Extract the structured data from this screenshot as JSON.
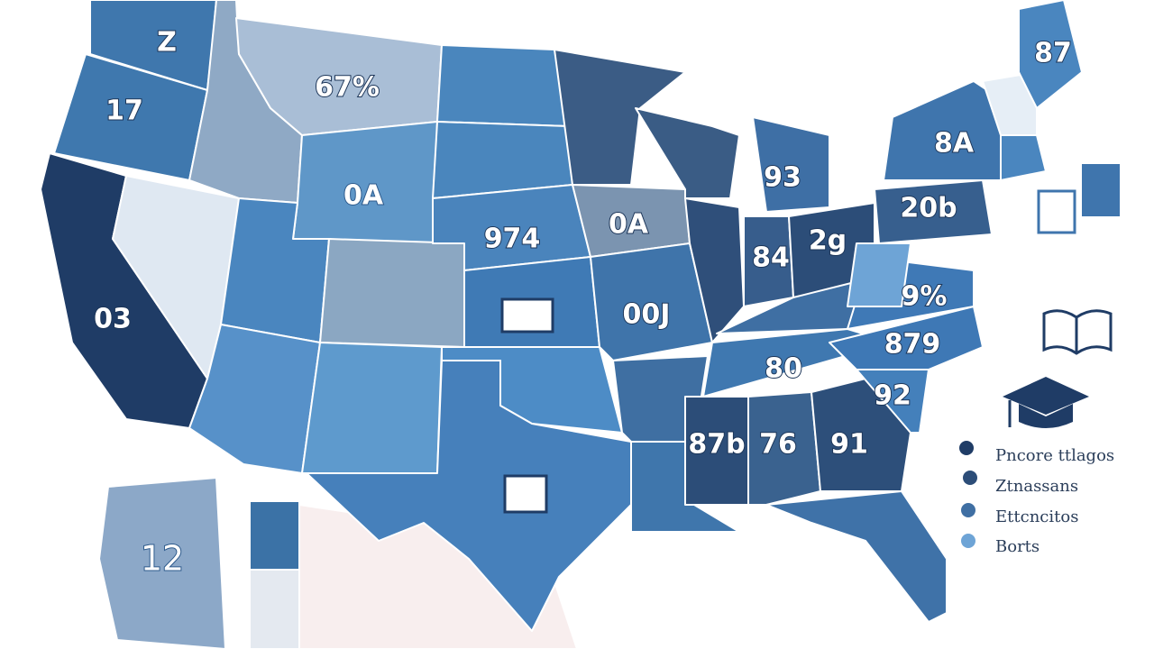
{
  "map": {
    "region_labels": [
      "Z",
      "17",
      "67%",
      "0A",
      "03",
      "974",
      "0A",
      "00J",
      "93",
      "20b",
      "84",
      "2g",
      "9%",
      "879",
      "80",
      "92",
      "87b",
      "76",
      "91",
      "8A",
      "87",
      "12"
    ],
    "legend": [
      "Pncore ttlagos",
      "Ztnassans",
      "Ettcncitos",
      "Borts"
    ]
  }
}
